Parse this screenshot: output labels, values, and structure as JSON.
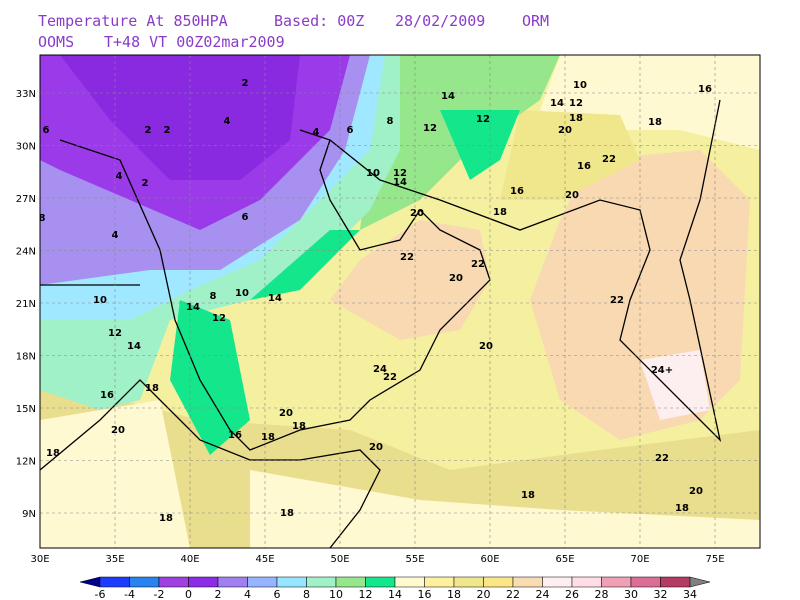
{
  "header": {
    "title": "Temperature At 850HPA",
    "based": "Based: 00Z",
    "date": "28/02/2009",
    "source": "ORM",
    "model": "OOMS",
    "valid": "T+48 VT 00Z02mar2009"
  },
  "map": {
    "lon_labels": [
      "30E",
      "35E",
      "40E",
      "45E",
      "50E",
      "55E",
      "60E",
      "65E",
      "70E",
      "75E"
    ],
    "lat_labels": [
      "33N",
      "30N",
      "27N",
      "24N",
      "21N",
      "18N",
      "15N",
      "12N",
      "9N"
    ],
    "contour_labels": [
      "6",
      "2",
      "2",
      "2",
      "4",
      "4",
      "6",
      "8",
      "12",
      "14",
      "12",
      "10",
      "14",
      "12",
      "18",
      "20",
      "16",
      "18",
      "22",
      "16",
      "16",
      "20",
      "18",
      "10",
      "12",
      "14",
      "20",
      "4",
      "2",
      "8",
      "6",
      "22",
      "20",
      "22",
      "22",
      "4",
      "10",
      "14",
      "8",
      "10",
      "14",
      "12",
      "12",
      "14",
      "20",
      "24",
      "22",
      "24+",
      "18",
      "16",
      "20",
      "18",
      "18",
      "16",
      "20",
      "20",
      "18",
      "22",
      "20",
      "18",
      "18",
      "18",
      "18"
    ]
  },
  "colorbar": {
    "labels": [
      "-6",
      "-4",
      "-2",
      "0",
      "2",
      "4",
      "6",
      "8",
      "10",
      "12",
      "14",
      "16",
      "18",
      "20",
      "22",
      "24",
      "26",
      "28",
      "30",
      "32",
      "34"
    ]
  }
}
